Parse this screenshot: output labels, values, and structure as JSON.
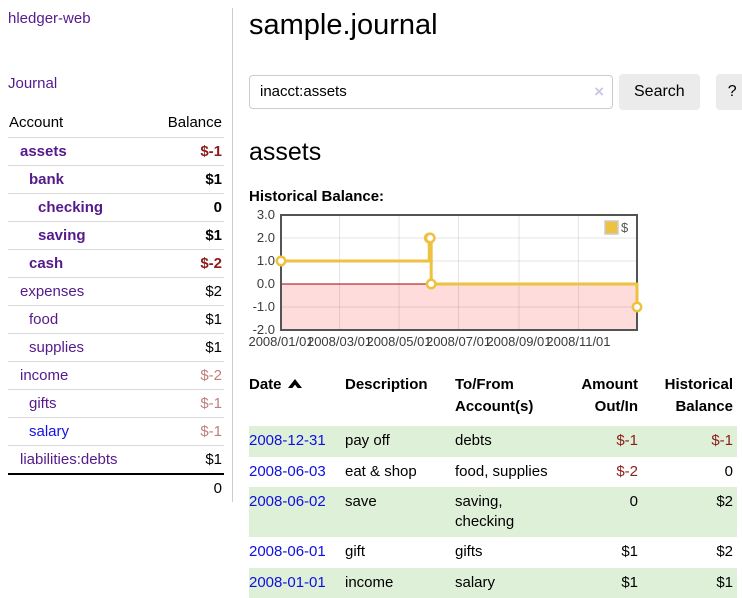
{
  "app": {
    "brand": "hledger-web"
  },
  "sidebar": {
    "nav": {
      "journal": "Journal"
    },
    "accounts": {
      "headers": {
        "account": "Account",
        "balance": "Balance"
      },
      "rows": [
        {
          "name": "assets",
          "balance": "$-1",
          "indent": 0
        },
        {
          "name": "bank",
          "balance": "$1",
          "indent": 1
        },
        {
          "name": "checking",
          "balance": "0",
          "indent": 2
        },
        {
          "name": "saving",
          "balance": "$1",
          "indent": 2
        },
        {
          "name": "cash",
          "balance": "$-2",
          "indent": 1
        },
        {
          "name": "expenses",
          "balance": "$2",
          "indent": 0
        },
        {
          "name": "food",
          "balance": "$1",
          "indent": 1
        },
        {
          "name": "supplies",
          "balance": "$1",
          "indent": 1
        },
        {
          "name": "income",
          "balance": "$-2",
          "indent": 0
        },
        {
          "name": "gifts",
          "balance": "$-1",
          "indent": 1
        },
        {
          "name": "salary",
          "balance": "$-1",
          "indent": 1
        },
        {
          "name": "liabilities:debts",
          "balance": "$1",
          "indent": 0
        }
      ],
      "total": "0"
    }
  },
  "header": {
    "title": "sample.journal"
  },
  "search": {
    "value": "inacct:assets",
    "clear_icon": "×",
    "button_label": "Search",
    "help_label": "?"
  },
  "account_page": {
    "heading": "assets",
    "chart_title": "Historical Balance:"
  },
  "chart_data": {
    "type": "line",
    "style": "steps",
    "title": "Historical Balance",
    "series": [
      {
        "name": "$",
        "color": "#edc240",
        "points": [
          [
            "2008-01-01",
            1
          ],
          [
            "2008-06-01",
            2
          ],
          [
            "2008-06-02",
            2
          ],
          [
            "2008-06-03",
            0
          ],
          [
            "2008-12-31",
            -1
          ]
        ]
      }
    ],
    "x_range": [
      "2008-01-01",
      "2008-12-31"
    ],
    "x_ticks": [
      "2008/01/01",
      "2008/03/01",
      "2008/05/01",
      "2008/07/01",
      "2008/09/01",
      "2008/11/01"
    ],
    "y_ticks": [
      3.0,
      2.0,
      1.0,
      0.0,
      -1.0,
      -2.0
    ],
    "ylim": [
      -2.0,
      3.0
    ],
    "grid": true,
    "legend_position": "top-right",
    "negative_region": {
      "fill": "#ffdcdc",
      "zero_line_color": "#a40000"
    }
  },
  "register": {
    "headers": [
      {
        "line1": "Date",
        "line2": ""
      },
      {
        "line1": "Description",
        "line2": ""
      },
      {
        "line1": "To/From",
        "line2": "Account(s)"
      },
      {
        "line1": "Amount",
        "line2": "Out/In"
      },
      {
        "line1": "Historical",
        "line2": "Balance"
      }
    ],
    "sort": {
      "column": "Date",
      "direction": "asc"
    },
    "rows": [
      {
        "date": "2008-12-31",
        "description": "pay off",
        "accounts": "debts",
        "amount": "$-1",
        "balance": "$-1"
      },
      {
        "date": "2008-06-03",
        "description": "eat & shop",
        "accounts": "food, supplies",
        "amount": "$-2",
        "balance": "0"
      },
      {
        "date": "2008-06-02",
        "description": "save",
        "accounts": "saving, checking",
        "amount": "0",
        "balance": "$2"
      },
      {
        "date": "2008-06-01",
        "description": "gift",
        "accounts": "gifts",
        "amount": "$1",
        "balance": "$2"
      },
      {
        "date": "2008-01-01",
        "description": "income",
        "accounts": "salary",
        "amount": "$1",
        "balance": "$1"
      }
    ]
  },
  "colors": {
    "link_purple": "#551A8B",
    "link_blue": "#1212e6",
    "negative_strong": "#8e1b1b",
    "negative_soft": "#bf7e7e",
    "row_green": "#dff0d8",
    "chart_series_gold": "#edc240",
    "chart_negative_fill": "#ffdcdc",
    "chart_zero_line": "#a40000",
    "chart_border": "#545454"
  }
}
